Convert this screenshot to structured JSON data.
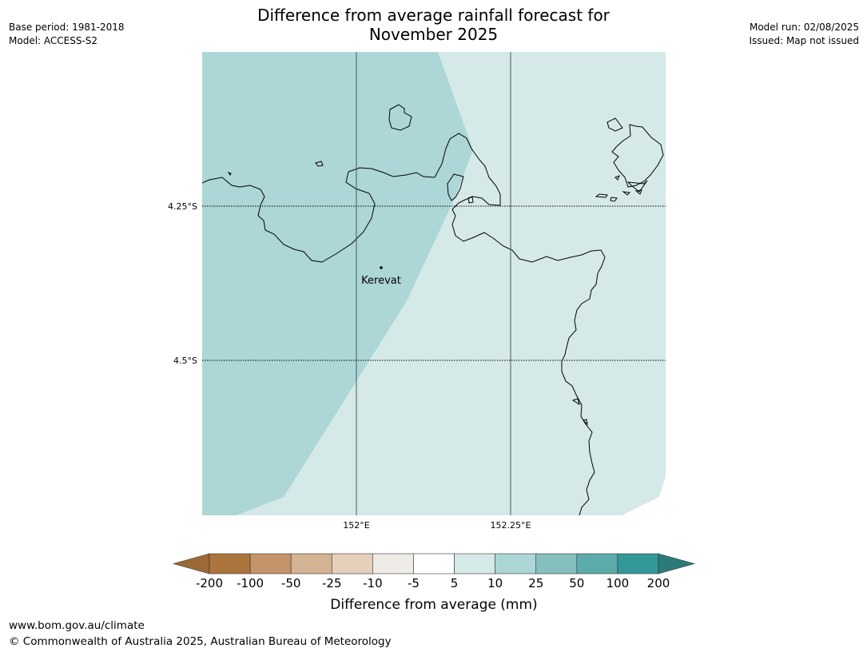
{
  "title_lines": [
    "Difference from average rainfall forecast for",
    "November 2025"
  ],
  "meta_left": {
    "base_period": "Base period: 1981-2018",
    "model": "Model: ACCESS-S2"
  },
  "meta_right": {
    "model_run": "Model run: 02/08/2025",
    "issued": "Issued: Map not issued"
  },
  "map": {
    "lat_labels": [
      "4.25°S",
      "4.5°S"
    ],
    "lon_labels": [
      "152°E",
      "152.25°E"
    ],
    "place": {
      "name": "Kerevat"
    },
    "colors": {
      "category_25_50": "#add6d6",
      "category_5_10": "#d5e9e9",
      "coastline": "#000000",
      "gridline": "#4a5a5a"
    }
  },
  "colorbar": {
    "label": "Difference from average (mm)",
    "ticks": [
      "-200",
      "-100",
      "-50",
      "-25",
      "-10",
      "-5",
      "5",
      "10",
      "25",
      "50",
      "100",
      "200"
    ],
    "colors": [
      "#9c6a36",
      "#ad753e",
      "#c39369",
      "#d4b294",
      "#e5d0bc",
      "#efebe6",
      "#ffffff",
      "#d5e9e9",
      "#add6d6",
      "#85c0bf",
      "#5babab",
      "#339898",
      "#2b7b7b"
    ]
  },
  "footer": {
    "url": "www.bom.gov.au/climate",
    "copyright": "© Commonwealth of Australia 2025, Australian Bureau of Meteorology"
  }
}
